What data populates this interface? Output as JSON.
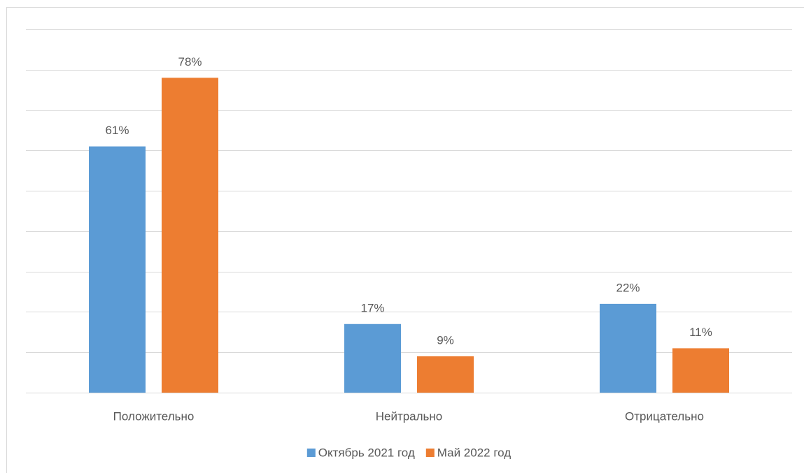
{
  "chart_data": {
    "type": "bar",
    "categories": [
      "Положительно",
      "Нейтрально",
      "Отрицательно"
    ],
    "series": [
      {
        "name": "Октябрь 2021 год",
        "color": "#5b9bd5",
        "values": [
          61,
          17,
          22
        ],
        "value_labels": [
          "61%",
          "17%",
          "22%"
        ]
      },
      {
        "name": "Май 2022 год",
        "color": "#ed7d31",
        "values": [
          78,
          9,
          11
        ],
        "value_labels": [
          "78%",
          "9%",
          "11%"
        ]
      }
    ],
    "ylim": [
      0,
      90
    ],
    "yticks": [
      0,
      10,
      20,
      30,
      40,
      50,
      60,
      70,
      80,
      90
    ],
    "grid": true,
    "legend": "bottom"
  }
}
